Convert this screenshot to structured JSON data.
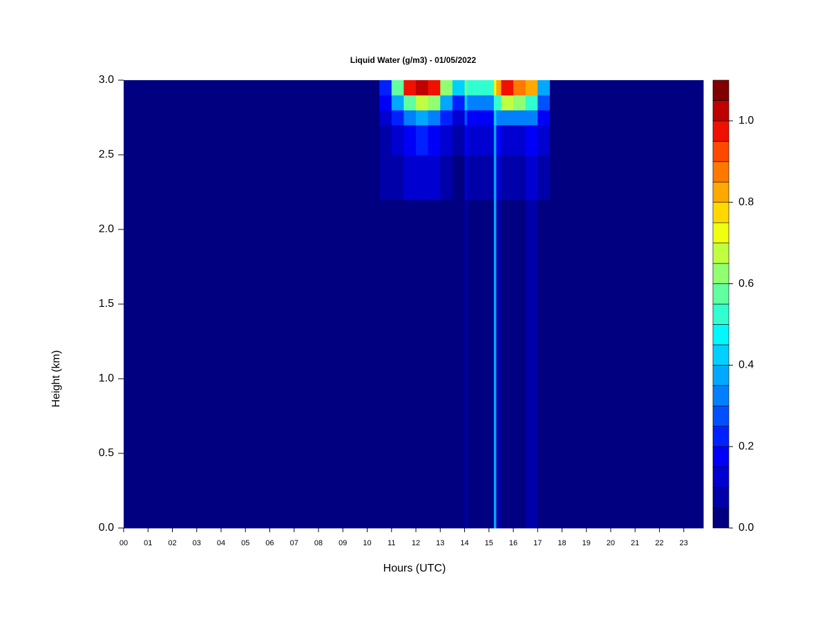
{
  "chart_data": {
    "type": "heatmap",
    "title": "Liquid Water (g/m3) - 01/05/2022",
    "xlabel": "Hours (UTC)",
    "ylabel": "Height (km)",
    "xlim": [
      0,
      23.8
    ],
    "ylim": [
      0,
      3
    ],
    "xticks": [
      {
        "value": 0,
        "label": "00"
      },
      {
        "value": 1,
        "label": "01"
      },
      {
        "value": 2,
        "label": "02"
      },
      {
        "value": 3,
        "label": "03"
      },
      {
        "value": 4,
        "label": "04"
      },
      {
        "value": 5,
        "label": "05"
      },
      {
        "value": 6,
        "label": "06"
      },
      {
        "value": 7,
        "label": "07"
      },
      {
        "value": 8,
        "label": "08"
      },
      {
        "value": 9,
        "label": "09"
      },
      {
        "value": 10,
        "label": "10"
      },
      {
        "value": 11,
        "label": "11"
      },
      {
        "value": 12,
        "label": "12"
      },
      {
        "value": 13,
        "label": "13"
      },
      {
        "value": 14,
        "label": "14"
      },
      {
        "value": 15,
        "label": "15"
      },
      {
        "value": 16,
        "label": "16"
      },
      {
        "value": 17,
        "label": "17"
      },
      {
        "value": 18,
        "label": "18"
      },
      {
        "value": 19,
        "label": "19"
      },
      {
        "value": 20,
        "label": "20"
      },
      {
        "value": 21,
        "label": "21"
      },
      {
        "value": 22,
        "label": "22"
      },
      {
        "value": 23,
        "label": "23"
      }
    ],
    "yticks": [
      {
        "value": 0,
        "label": "0.0"
      },
      {
        "value": 0.5,
        "label": "0.5"
      },
      {
        "value": 1,
        "label": "1.0"
      },
      {
        "value": 1.5,
        "label": "1.5"
      },
      {
        "value": 2,
        "label": "2.0"
      },
      {
        "value": 2.5,
        "label": "2.5"
      },
      {
        "value": 3,
        "label": "3.0"
      }
    ],
    "x": [
      0,
      10.5,
      11,
      11.5,
      12,
      12.5,
      13,
      13.5,
      14,
      14.1,
      15.2,
      15.3,
      15.5,
      16,
      16.5,
      17,
      17.5,
      23.8
    ],
    "y": [
      0,
      2.2,
      2.5,
      2.7,
      2.8,
      2.9,
      3
    ],
    "values": [
      [
        0,
        0,
        0,
        0,
        0,
        0,
        0,
        0,
        0.05,
        0,
        0.35,
        0.05,
        0,
        0,
        0.05,
        0,
        0
      ],
      [
        0,
        0.05,
        0.05,
        0.1,
        0.1,
        0.1,
        0.05,
        0,
        0.1,
        0.05,
        0.35,
        0.1,
        0.05,
        0.05,
        0.1,
        0.05,
        0
      ],
      [
        0,
        0.05,
        0.1,
        0.15,
        0.2,
        0.15,
        0.1,
        0.05,
        0.15,
        0.1,
        0.35,
        0.15,
        0.1,
        0.1,
        0.15,
        0.1,
        0
      ],
      [
        0,
        0.1,
        0.2,
        0.3,
        0.35,
        0.3,
        0.2,
        0.1,
        0.25,
        0.15,
        0.4,
        0.3,
        0.3,
        0.3,
        0.3,
        0.15,
        0
      ],
      [
        0,
        0.15,
        0.35,
        0.55,
        0.65,
        0.6,
        0.35,
        0.2,
        0.4,
        0.3,
        0.5,
        0.5,
        0.65,
        0.6,
        0.5,
        0.25,
        0
      ],
      [
        0,
        0.2,
        0.55,
        0.95,
        1,
        0.95,
        0.6,
        0.4,
        0.55,
        0.5,
        0.7,
        0.8,
        0.95,
        0.85,
        0.8,
        0.35,
        0
      ]
    ],
    "levels": [
      0,
      0.05,
      0.1,
      0.15,
      0.2,
      0.25,
      0.3,
      0.35,
      0.4,
      0.45,
      0.5,
      0.55,
      0.6,
      0.65,
      0.7,
      0.75,
      0.8,
      0.85,
      0.9,
      0.95,
      1,
      1.05,
      1.1
    ],
    "colors": [
      "#000080",
      "#0000A8",
      "#0000D0",
      "#0000F8",
      "#0020FF",
      "#0050FF",
      "#0080FF",
      "#00A8FF",
      "#00D0FF",
      "#00F8FF",
      "#30FFD0",
      "#60FFA0",
      "#90FF70",
      "#C0FF40",
      "#F0FF10",
      "#FFD800",
      "#FFA800",
      "#FF7800",
      "#FF4800",
      "#F01000",
      "#C00000",
      "#800000"
    ],
    "colorbar_ticks": [
      {
        "value": 0,
        "label": "0.0"
      },
      {
        "value": 0.2,
        "label": "0.2"
      },
      {
        "value": 0.4,
        "label": "0.4"
      },
      {
        "value": 0.6,
        "label": "0.6"
      },
      {
        "value": 0.8,
        "label": "0.8"
      },
      {
        "value": 1,
        "label": "1.0"
      }
    ]
  }
}
